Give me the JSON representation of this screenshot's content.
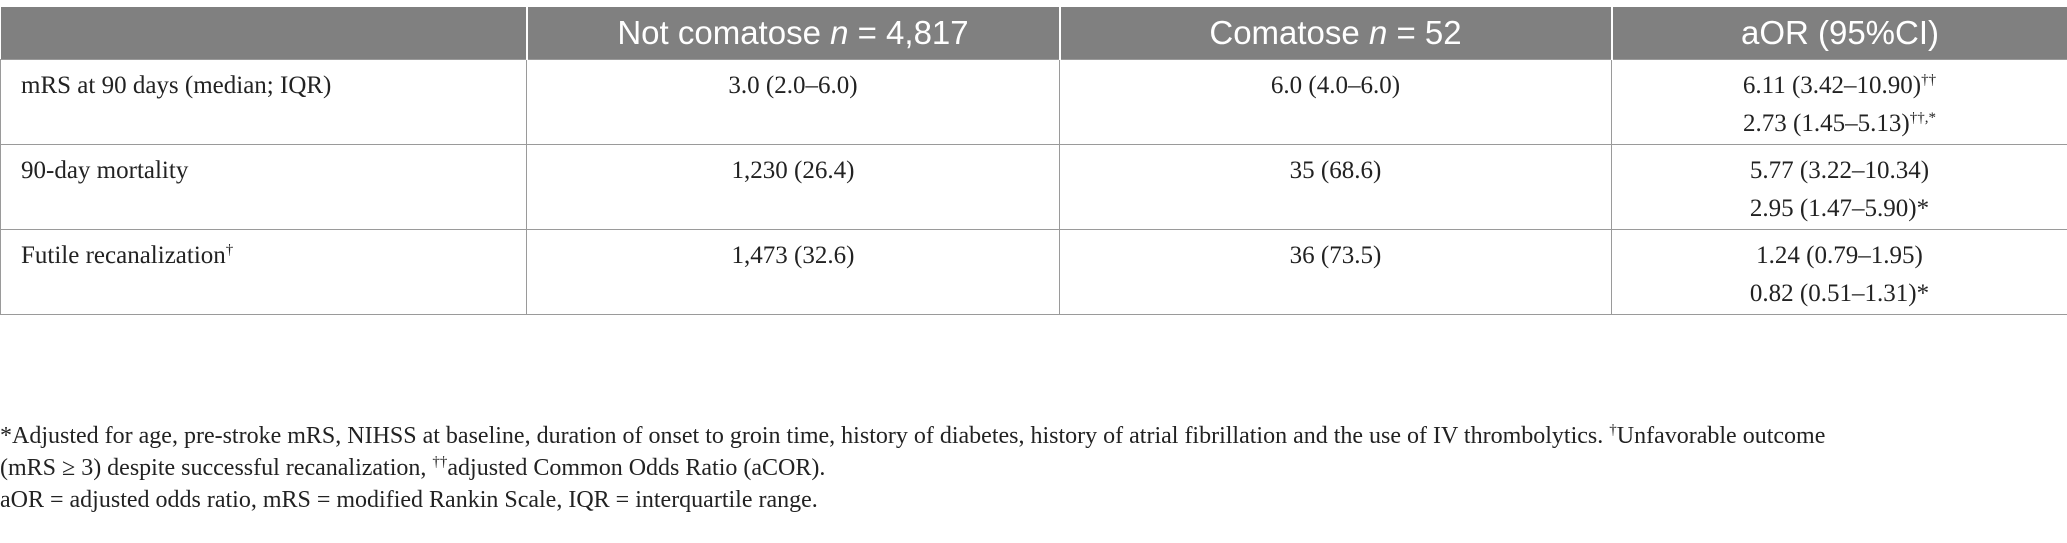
{
  "table": {
    "headers": {
      "col0": "",
      "col1_pre": "Not comatose ",
      "col1_n": "n",
      "col1_post": " = 4,817",
      "col2_pre": "Comatose ",
      "col2_n": "n",
      "col2_post": " = 52",
      "col3": "aOR (95%CI)"
    },
    "rows": [
      {
        "label": "mRS at 90 days (median; IQR)",
        "label_sup": "",
        "not_comatose": "3.0 (2.0–6.0)",
        "comatose": "6.0 (4.0–6.0)",
        "aor_line1": "6.11 (3.42–10.90)",
        "aor_line1_sup": "††",
        "aor_line2": "2.73 (1.45–5.13)",
        "aor_line2_sup": "††,*"
      },
      {
        "label": "90-day mortality",
        "label_sup": "",
        "not_comatose": "1,230 (26.4)",
        "comatose": "35 (68.6)",
        "aor_line1": "5.77 (3.22–10.34)",
        "aor_line1_sup": "",
        "aor_line2": "2.95 (1.47–5.90)*",
        "aor_line2_sup": ""
      },
      {
        "label": "Futile recanalization",
        "label_sup": "†",
        "not_comatose": "1,473 (32.6)",
        "comatose": "36 (73.5)",
        "aor_line1": "1.24 (0.79–1.95)",
        "aor_line1_sup": "",
        "aor_line2": "0.82 (0.51–1.31)*",
        "aor_line2_sup": ""
      }
    ]
  },
  "footnotes": {
    "line1a": "*Adjusted for age, pre-stroke mRS, NIHSS at baseline, duration of onset to groin time, history of diabetes, history of atrial fibrillation and the use of IV thrombolytics. ",
    "line1_sup": "†",
    "line1b": "Unfavorable outcome",
    "line2a": "(mRS ≥ 3) despite successful recanalization, ",
    "line2_sup": "††",
    "line2b": "adjusted Common Odds Ratio (aCOR).",
    "line3": "aOR = adjusted odds ratio, mRS = modified Rankin Scale, IQR = interquartile range."
  }
}
